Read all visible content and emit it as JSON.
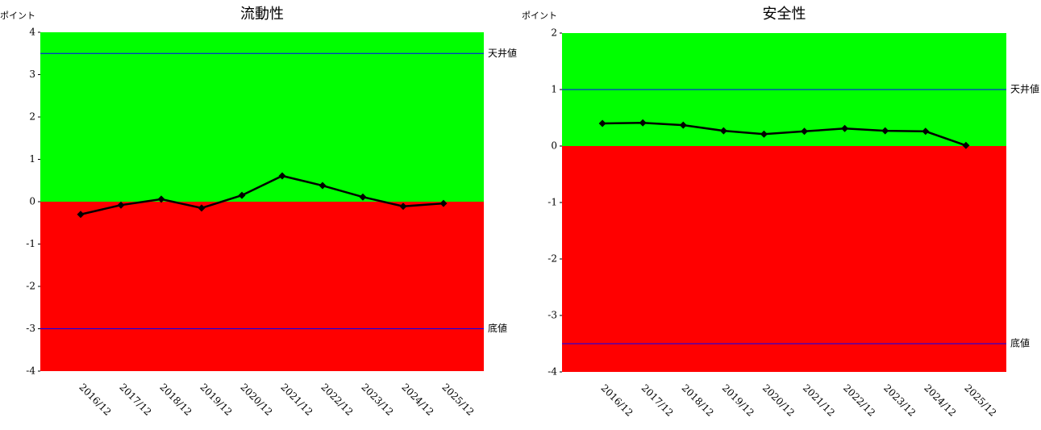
{
  "chart_data": [
    {
      "type": "line",
      "title": "流動性",
      "y_label": "ポイント",
      "categories": [
        "2016/12",
        "2017/12",
        "2018/12",
        "2019/12",
        "2020/12",
        "2021/12",
        "2022/12",
        "2023/12",
        "2024/12",
        "2025/12"
      ],
      "series": [
        {
          "color": "#000000",
          "values": [
            -0.3,
            -0.08,
            0.06,
            -0.15,
            0.15,
            0.61,
            0.38,
            0.11,
            -0.11,
            -0.04
          ]
        }
      ],
      "ylim": [
        -4,
        4
      ],
      "yticks": [
        -4,
        -3,
        -2,
        -1,
        0,
        1,
        2,
        3,
        4
      ],
      "threshold": 0,
      "above_color": "#00ff00",
      "below_color": "#ff0000",
      "reference_lines": [
        {
          "value": 3.5,
          "label": "天井値",
          "color": "#0000ff"
        },
        {
          "value": -3,
          "label": "底値",
          "color": "#0000ff"
        }
      ]
    },
    {
      "type": "line",
      "title": "安全性",
      "y_label": "ポイント",
      "categories": [
        "2016/12",
        "2017/12",
        "2018/12",
        "2019/12",
        "2020/12",
        "2021/12",
        "2022/12",
        "2023/12",
        "2024/12",
        "2025/12"
      ],
      "series": [
        {
          "color": "#000000",
          "values": [
            0.4,
            0.41,
            0.37,
            0.27,
            0.21,
            0.26,
            0.31,
            0.27,
            0.26,
            0.01
          ]
        }
      ],
      "ylim": [
        -4,
        2
      ],
      "yticks": [
        -4,
        -3,
        -2,
        -1,
        0,
        1,
        2
      ],
      "threshold": 0,
      "above_color": "#00ff00",
      "below_color": "#ff0000",
      "reference_lines": [
        {
          "value": 1,
          "label": "天井値",
          "color": "#0000ff"
        },
        {
          "value": -3.5,
          "label": "底値",
          "color": "#0000ff"
        }
      ]
    }
  ]
}
